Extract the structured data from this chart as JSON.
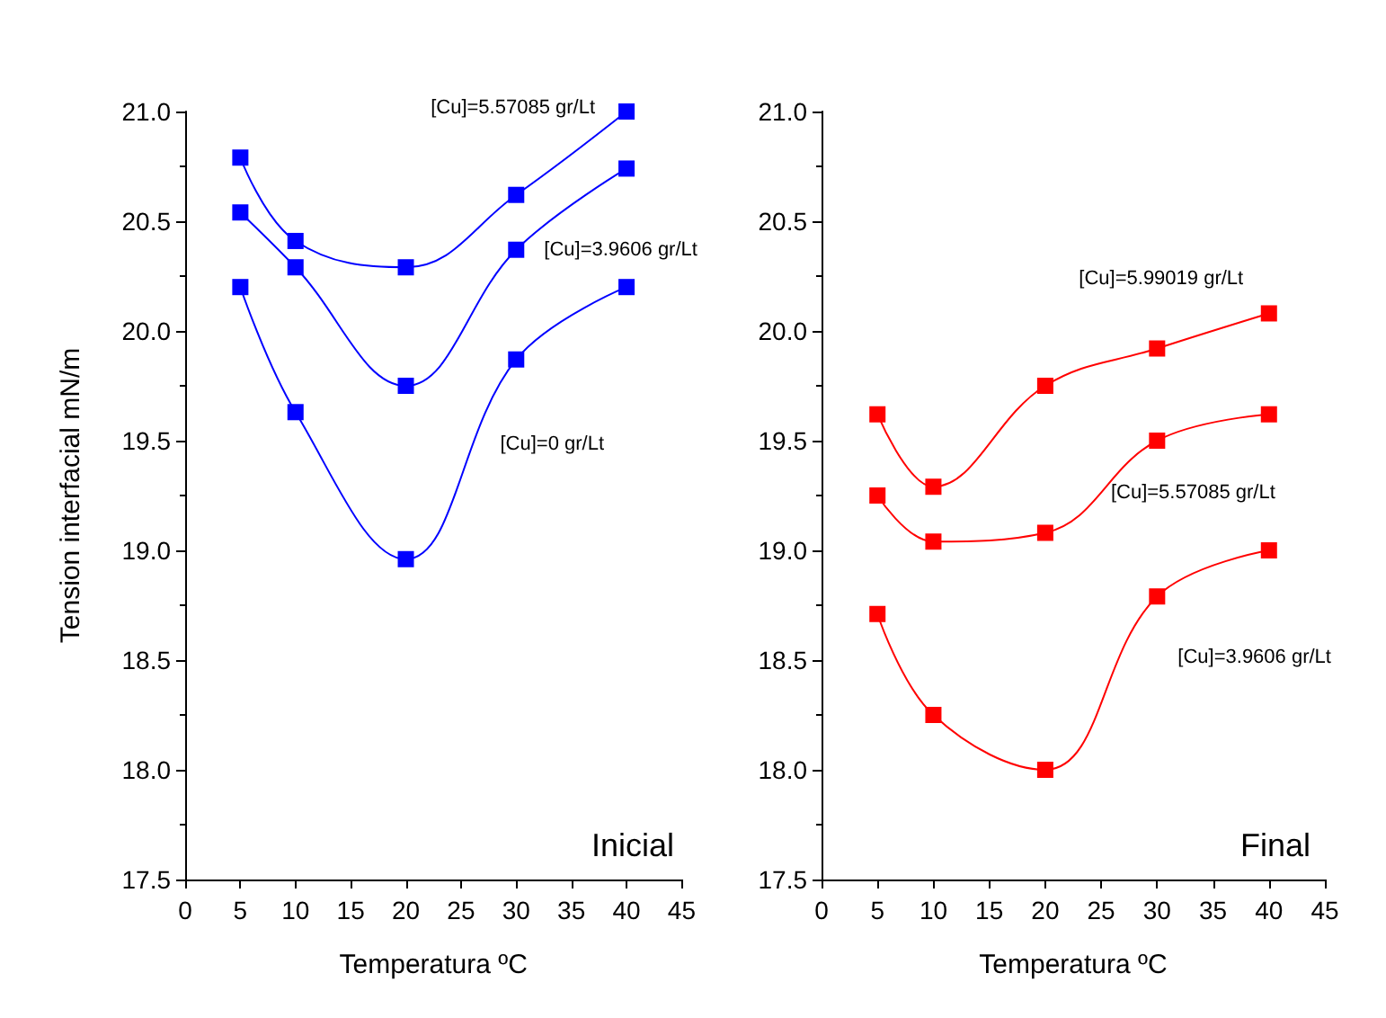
{
  "chart_data": [
    {
      "type": "line",
      "xlabel": "Temperatura ºC",
      "ylabel": "Tension interfacial mN/m",
      "annotations": [
        "Inicial"
      ],
      "xlim": [
        0,
        45
      ],
      "xticks": [
        0,
        5,
        10,
        15,
        20,
        25,
        30,
        35,
        40,
        45
      ],
      "ylim": [
        17.5,
        21.0
      ],
      "yticks": [
        {
          "value": 17.5,
          "label": "17.5"
        },
        {
          "value": 18,
          "label": "18.0"
        },
        {
          "value": 18.5,
          "label": "18.5"
        },
        {
          "value": 19,
          "label": "19.0"
        },
        {
          "value": 19.5,
          "label": "19.5"
        },
        {
          "value": 20,
          "label": "20.0"
        },
        {
          "value": 20.5,
          "label": "20.5"
        },
        {
          "value": 21,
          "label": "21.0"
        }
      ],
      "x": [
        5,
        10,
        20,
        30,
        40
      ],
      "marker": "square",
      "grid": false,
      "legend": false,
      "series": [
        {
          "name": "[Cu]=5.57085 gr/Lt",
          "color": "#0000ff",
          "values": [
            20.79,
            20.41,
            20.29,
            20.62,
            21.0
          ]
        },
        {
          "name": "[Cu]=3.9606 gr/Lt",
          "color": "#0000ff",
          "values": [
            20.54,
            20.29,
            19.75,
            20.37,
            20.74
          ]
        },
        {
          "name": "[Cu]=0 gr/Lt",
          "color": "#0000ff",
          "values": [
            20.2,
            19.63,
            18.96,
            19.87,
            20.2
          ]
        }
      ]
    },
    {
      "type": "line",
      "xlabel": "Temperatura ºC",
      "annotations": [
        "Final"
      ],
      "xlim": [
        0,
        45
      ],
      "xticks": [
        0,
        5,
        10,
        15,
        20,
        25,
        30,
        35,
        40,
        45
      ],
      "ylim": [
        17.5,
        21.0
      ],
      "yticks": [
        {
          "value": 17.5,
          "label": "17.5"
        },
        {
          "value": 18,
          "label": "18.0"
        },
        {
          "value": 18.5,
          "label": "18.5"
        },
        {
          "value": 19,
          "label": "19.0"
        },
        {
          "value": 19.5,
          "label": "19.5"
        },
        {
          "value": 20,
          "label": "20.0"
        },
        {
          "value": 20.5,
          "label": "20.5"
        },
        {
          "value": 21,
          "label": "21.0"
        }
      ],
      "x": [
        5,
        10,
        20,
        30,
        40
      ],
      "marker": "square",
      "grid": false,
      "legend": false,
      "series": [
        {
          "name": "[Cu]=5.99019 gr/Lt",
          "color": "#ff0000",
          "values": [
            19.62,
            19.29,
            19.75,
            19.92,
            20.08
          ]
        },
        {
          "name": "[Cu]=5.57085 gr/Lt",
          "color": "#ff0000",
          "values": [
            19.25,
            19.04,
            19.08,
            19.5,
            19.62
          ]
        },
        {
          "name": "[Cu]=3.9606 gr/Lt",
          "color": "#ff0000",
          "values": [
            18.71,
            18.25,
            18.0,
            18.79,
            19.0
          ]
        }
      ]
    }
  ]
}
